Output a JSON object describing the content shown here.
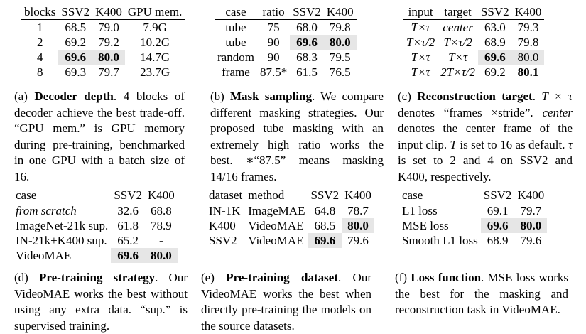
{
  "tables": [
    {
      "id": "a",
      "headers": [
        "blocks",
        "SSV2",
        "K400",
        "GPU mem."
      ],
      "align": [
        "c",
        "c",
        "c",
        "c"
      ],
      "rows": [
        [
          "1",
          "68.5",
          "79.0",
          "7.9G"
        ],
        [
          "2",
          "69.2",
          "79.2",
          "10.2G"
        ],
        [
          "4",
          "69.6",
          "80.0",
          "14.7G"
        ],
        [
          "8",
          "69.3",
          "79.7",
          "23.7G"
        ]
      ],
      "bold": [
        [
          2,
          1
        ],
        [
          2,
          2
        ]
      ],
      "shade": [
        [
          2,
          1
        ],
        [
          2,
          2
        ]
      ],
      "italic": []
    },
    {
      "id": "b",
      "headers": [
        "case",
        "ratio",
        "SSV2",
        "K400"
      ],
      "align": [
        "c",
        "c",
        "c",
        "c"
      ],
      "rows": [
        [
          "tube",
          "75",
          "68.0",
          "79.8"
        ],
        [
          "tube",
          "90",
          "69.6",
          "80.0"
        ],
        [
          "random",
          "90",
          "68.3",
          "79.5"
        ],
        [
          "frame",
          "87.5*",
          "61.5",
          "76.5"
        ]
      ],
      "bold": [
        [
          1,
          2
        ],
        [
          1,
          3
        ]
      ],
      "shade": [
        [
          1,
          2
        ],
        [
          1,
          3
        ]
      ],
      "italic": []
    },
    {
      "id": "c",
      "headers": [
        "input",
        "target",
        "SSV2",
        "K400"
      ],
      "align": [
        "c",
        "c",
        "c",
        "c"
      ],
      "rows": [
        [
          "T×τ",
          "center",
          "63.0",
          "79.3"
        ],
        [
          "T×τ/2",
          "T×τ/2",
          "68.9",
          "79.8"
        ],
        [
          "T×τ",
          "T×τ",
          "69.6",
          "80.0"
        ],
        [
          "T×τ",
          "2T×τ/2",
          "69.2",
          "80.1"
        ]
      ],
      "bold": [
        [
          2,
          2
        ],
        [
          3,
          3
        ]
      ],
      "shade": [
        [
          2,
          2
        ],
        [
          2,
          3
        ]
      ],
      "italic": [
        [
          0,
          0
        ],
        [
          0,
          1
        ],
        [
          1,
          0
        ],
        [
          1,
          1
        ],
        [
          2,
          0
        ],
        [
          2,
          1
        ],
        [
          3,
          0
        ],
        [
          3,
          1
        ]
      ]
    },
    {
      "id": "d",
      "headers": [
        "case",
        "SSV2",
        "K400"
      ],
      "align": [
        "l",
        "c",
        "c"
      ],
      "rows": [
        [
          "from scratch",
          "32.6",
          "68.8"
        ],
        [
          "ImageNet-21k sup.",
          "61.8",
          "78.9"
        ],
        [
          "IN-21k+K400 sup.",
          "65.2",
          "-"
        ],
        [
          "VideoMAE",
          "69.6",
          "80.0"
        ]
      ],
      "bold": [
        [
          3,
          1
        ],
        [
          3,
          2
        ]
      ],
      "shade": [
        [
          3,
          1
        ],
        [
          3,
          2
        ]
      ],
      "italic": [
        [
          0,
          0
        ]
      ]
    },
    {
      "id": "e",
      "headers": [
        "dataset",
        "method",
        "SSV2",
        "K400"
      ],
      "align": [
        "l",
        "l",
        "c",
        "c"
      ],
      "rows": [
        [
          "IN-1K",
          "ImageMAE",
          "64.8",
          "78.7"
        ],
        [
          "K400",
          "VideoMAE",
          "68.5",
          "80.0"
        ],
        [
          "SSV2",
          "VideoMAE",
          "69.6",
          "79.6"
        ]
      ],
      "bold": [
        [
          1,
          3
        ],
        [
          2,
          2
        ]
      ],
      "shade": [
        [
          1,
          3
        ],
        [
          2,
          2
        ]
      ],
      "italic": []
    },
    {
      "id": "f",
      "headers": [
        "case",
        "SSV2",
        "K400"
      ],
      "align": [
        "l",
        "c",
        "c"
      ],
      "rows": [
        [
          "L1 loss",
          "69.1",
          "79.7"
        ],
        [
          "MSE loss",
          "69.6",
          "80.0"
        ],
        [
          "Smooth L1 loss",
          "68.9",
          "79.6"
        ]
      ],
      "bold": [
        [
          1,
          1
        ],
        [
          1,
          2
        ]
      ],
      "shade": [
        [
          1,
          1
        ],
        [
          1,
          2
        ]
      ],
      "italic": []
    }
  ],
  "captions": [
    [
      {
        "t": "(a) "
      },
      {
        "t": "Decoder depth",
        "s": "b"
      },
      {
        "t": ". 4 blocks of decoder achieve the best trade-off. “GPU mem.” is GPU memory during pre-training, benchmarked in one GPU with a batch size of 16."
      }
    ],
    [
      {
        "t": "(b) "
      },
      {
        "t": "Mask sampling",
        "s": "b"
      },
      {
        "t": ". We compare different masking strategies. Our proposed tube masking with an extremely high ratio works the best. ∗“87.5” means masking 14/16 frames."
      }
    ],
    [
      {
        "t": "(c) "
      },
      {
        "t": "Reconstruction target",
        "s": "b"
      },
      {
        "t": ". "
      },
      {
        "t": "T × τ",
        "s": "i"
      },
      {
        "t": " denotes “frames ×stride”. "
      },
      {
        "t": "center",
        "s": "i"
      },
      {
        "t": " denotes the center frame of the input clip. "
      },
      {
        "t": "T",
        "s": "i"
      },
      {
        "t": " is set to 16 as default. "
      },
      {
        "t": "τ",
        "s": "i"
      },
      {
        "t": " is set to 2 and 4 on SSV2 and K400, respectively."
      }
    ],
    [
      {
        "t": "(d) "
      },
      {
        "t": "Pre-training strategy",
        "s": "b"
      },
      {
        "t": ". Our VideoMAE works the best without using any extra data. “sup.” is supervised training."
      }
    ],
    [
      {
        "t": "(e) "
      },
      {
        "t": "Pre-training dataset",
        "s": "b"
      },
      {
        "t": ". Our VideoMAE works the best when directly pre-training the models on the source datasets."
      }
    ],
    [
      {
        "t": "(f) "
      },
      {
        "t": "Loss function",
        "s": "b"
      },
      {
        "t": ". MSE loss works the best for the masking and reconstruction task in VideoMAE."
      }
    ]
  ]
}
